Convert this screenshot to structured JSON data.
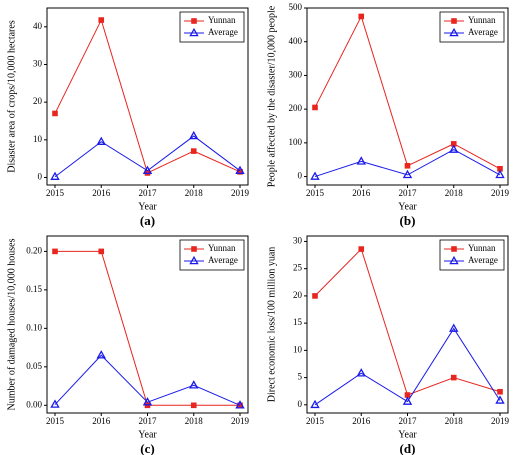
{
  "chart_data": [
    {
      "type": "line",
      "caption": "(a)",
      "x_label": "Year",
      "y_label": "Disaster area of crops/10,000 hectares",
      "categories": [
        "2015",
        "2016",
        "2017",
        "2018",
        "2019"
      ],
      "series": [
        {
          "name": "Yunnan",
          "color": "#e8251f",
          "marker": "square",
          "values": [
            17,
            41.8,
            1.2,
            7,
            1.5
          ]
        },
        {
          "name": "Average",
          "color": "#1a1aeb",
          "marker": "triangle",
          "values": [
            0.2,
            9.5,
            1.8,
            11,
            1.8
          ]
        }
      ],
      "ylim": [
        -2,
        45
      ],
      "yticks": [
        0,
        10,
        20,
        30,
        40
      ],
      "legend": "upper right"
    },
    {
      "type": "line",
      "caption": "(b)",
      "x_label": "Year",
      "y_label": "People affected by the disaster/10,000 people",
      "categories": [
        "2015",
        "2016",
        "2017",
        "2018",
        "2019"
      ],
      "series": [
        {
          "name": "Yunnan",
          "color": "#e8251f",
          "marker": "square",
          "values": [
            205,
            475,
            32,
            97,
            23
          ]
        },
        {
          "name": "Average",
          "color": "#1a1aeb",
          "marker": "triangle",
          "values": [
            0,
            45,
            5,
            80,
            5
          ]
        }
      ],
      "ylim": [
        -25,
        500
      ],
      "yticks": [
        0,
        100,
        200,
        300,
        400,
        500
      ],
      "legend": "upper right"
    },
    {
      "type": "line",
      "caption": "(c)",
      "x_label": "Year",
      "y_label": "Number of damaged houses/10,000 houses",
      "categories": [
        "2015",
        "2016",
        "2017",
        "2018",
        "2019"
      ],
      "series": [
        {
          "name": "Yunnan",
          "color": "#e8251f",
          "marker": "square",
          "values": [
            0.2,
            0.2,
            0,
            0,
            0
          ]
        },
        {
          "name": "Average",
          "color": "#1a1aeb",
          "marker": "triangle",
          "values": [
            0.001,
            0.065,
            0.004,
            0.026,
            0
          ]
        }
      ],
      "ylim": [
        -0.01,
        0.22
      ],
      "yticks": [
        {
          "value": 0,
          "label": "0.00"
        },
        {
          "value": 0.05,
          "label": "0.05"
        },
        {
          "value": 0.1,
          "label": "0.10"
        },
        {
          "value": 0.15,
          "label": "0.15"
        },
        {
          "value": 0.2,
          "label": "0.20"
        }
      ],
      "legend": "upper right"
    },
    {
      "type": "line",
      "caption": "(d)",
      "x_label": "Year",
      "y_label": "Direct economic loss/100 million yuan",
      "categories": [
        "2015",
        "2016",
        "2017",
        "2018",
        "2019"
      ],
      "series": [
        {
          "name": "Yunnan",
          "color": "#e8251f",
          "marker": "square",
          "values": [
            20,
            28.6,
            1.8,
            5,
            2.4
          ]
        },
        {
          "name": "Average",
          "color": "#1a1aeb",
          "marker": "triangle",
          "values": [
            0,
            5.8,
            0.6,
            14,
            0.8
          ]
        }
      ],
      "ylim": [
        -1.5,
        31
      ],
      "yticks": [
        0,
        5,
        10,
        15,
        20,
        25,
        30
      ],
      "legend": "upper right"
    }
  ]
}
